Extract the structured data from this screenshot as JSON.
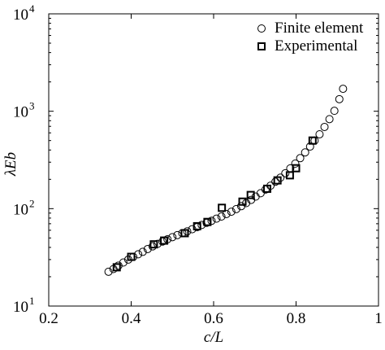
{
  "chart_data": {
    "type": "scatter",
    "xlabel": "c/L",
    "ylabel": "λEb",
    "xlim": [
      0.2,
      1.0
    ],
    "ylim": [
      10,
      10000
    ],
    "yscale": "log",
    "legend_position": "top-right",
    "x_ticks": [
      0.2,
      0.4,
      0.6,
      0.8,
      1.0
    ],
    "x_tick_labels": [
      "0.2",
      "0.4",
      "0.6",
      "0.8",
      "1"
    ],
    "y_ticks": [
      {
        "value": 10,
        "base": "10",
        "exp": "1"
      },
      {
        "value": 100,
        "base": "10",
        "exp": "2"
      },
      {
        "value": 1000,
        "base": "10",
        "exp": "3"
      },
      {
        "value": 10000,
        "base": "10",
        "exp": "4"
      }
    ],
    "series": [
      {
        "name": "Finite element",
        "marker": "circle",
        "x": [
          0.345,
          0.357,
          0.369,
          0.381,
          0.393,
          0.405,
          0.417,
          0.428,
          0.44,
          0.452,
          0.464,
          0.476,
          0.488,
          0.5,
          0.512,
          0.524,
          0.536,
          0.548,
          0.56,
          0.571,
          0.583,
          0.595,
          0.607,
          0.619,
          0.631,
          0.643,
          0.655,
          0.667,
          0.679,
          0.691,
          0.702,
          0.714,
          0.726,
          0.738,
          0.75,
          0.762,
          0.774,
          0.786,
          0.798,
          0.81,
          0.822,
          0.834,
          0.845,
          0.857,
          0.869,
          0.881,
          0.893,
          0.905,
          0.914
        ],
        "y": [
          22.5,
          24,
          26,
          28,
          30,
          32,
          34,
          36,
          38.5,
          41,
          43.5,
          46,
          48.5,
          51,
          53.5,
          56,
          58.5,
          61.5,
          64.5,
          68,
          71.5,
          75,
          79,
          83,
          88,
          93,
          99,
          106,
          114,
          123,
          133,
          144,
          157,
          172,
          189,
          208,
          231,
          259,
          290,
          330,
          378,
          434,
          500,
          580,
          690,
          830,
          1010,
          1330,
          1700
        ]
      },
      {
        "name": "Experimental",
        "marker": "square",
        "x": [
          0.365,
          0.4,
          0.455,
          0.48,
          0.53,
          0.56,
          0.585,
          0.62,
          0.67,
          0.69,
          0.73,
          0.755,
          0.785,
          0.8,
          0.84
        ],
        "y": [
          25,
          32,
          43,
          47,
          56,
          66,
          73,
          102,
          118,
          138,
          160,
          195,
          220,
          260,
          500
        ]
      }
    ]
  }
}
